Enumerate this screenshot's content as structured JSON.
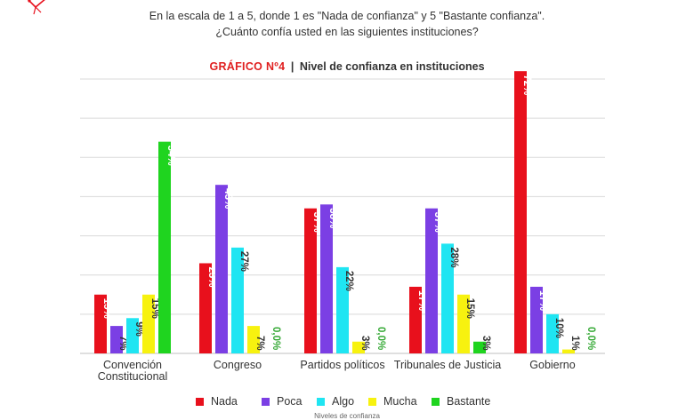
{
  "header": {
    "question_line1": "En la escala de 1 a 5, donde 1 es \"Nada de confianza\" y 5 \"Bastante confianza\".",
    "question_line2": "¿Cuánto confía usted en las siguientes instituciones?",
    "chart_label": "GRÁFICO Nº4",
    "separator": "|",
    "chart_subtitle": "Nivel de confianza en instituciones"
  },
  "chart_data": {
    "type": "bar",
    "title": "Nivel de confianza en instituciones",
    "xlabel": "Niveles de confianza",
    "ylabel": "",
    "ylim": [
      0,
      70
    ],
    "grid": true,
    "legend_position": "bottom",
    "categories": [
      [
        "Convención",
        "Constitucional"
      ],
      [
        "Congreso"
      ],
      [
        "Partidos políticos"
      ],
      [
        "Tribunales de Justicia"
      ],
      [
        "Gobierno"
      ]
    ],
    "series": [
      {
        "name": "Nada",
        "color": "#e8101c",
        "values": [
          15,
          23,
          37,
          17,
          72
        ],
        "labels": [
          "15%",
          "23%",
          "37%",
          "17%",
          "72%"
        ]
      },
      {
        "name": "Poca",
        "color": "#7b3fe4",
        "values": [
          7,
          43,
          38,
          37,
          17
        ],
        "labels": [
          "7%",
          "43%",
          "38%",
          "37%",
          "17%"
        ]
      },
      {
        "name": "Algo",
        "color": "#1fe5f2",
        "values": [
          9,
          27,
          22,
          28,
          10
        ],
        "labels": [
          "9%",
          "27%",
          "22%",
          "28%",
          "10%"
        ]
      },
      {
        "name": "Mucha",
        "color": "#f7f20f",
        "values": [
          15,
          7,
          3,
          15,
          1
        ],
        "labels": [
          "15%",
          "7%",
          "3%",
          "15%",
          "1%"
        ]
      },
      {
        "name": "Bastante",
        "color": "#1fd41f",
        "values": [
          54,
          0,
          0,
          3,
          0
        ],
        "labels": [
          "54%",
          "0,0%",
          "0,0%",
          "3%",
          "0,0%"
        ]
      }
    ]
  }
}
